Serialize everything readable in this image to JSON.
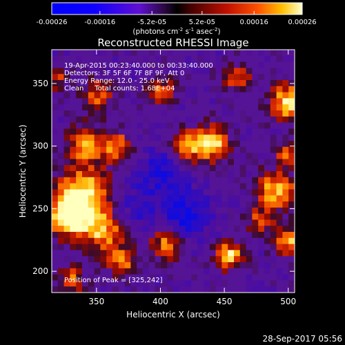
{
  "chart_data": {
    "type": "heatmap",
    "title": "Reconstructed RHESSI Image",
    "xlabel": "Heliocentric X (arcsec)",
    "ylabel": "Heliocentric Y (arcsec)",
    "xlim": [
      315,
      505
    ],
    "ylim": [
      183,
      377
    ],
    "x_ticks": [
      350,
      400,
      450,
      500
    ],
    "y_ticks": [
      200,
      250,
      300,
      350
    ],
    "colorbar": {
      "range": [
        -0.00026,
        0.00026
      ],
      "tick_labels": [
        "-0.00026",
        "-0.00016",
        "-5.2e-05",
        "5.2e-05",
        "0.00016",
        "0.00026"
      ],
      "tick_values": [
        -0.00026,
        -0.00016,
        -5.2e-05,
        5.2e-05,
        0.00016,
        0.00026
      ],
      "label": "(photons cm",
      "label_sup1": "-2",
      "label_mid": " s",
      "label_sup2": "-1",
      "label_end": " asec",
      "label_sup3": "-2",
      "label_close": ")"
    },
    "annotations": [
      "19-Apr-2015 00:23:40.000 to 00:33:40.000",
      "Detectors: 3F 5F 6F 7F 8F 9F, Att 0",
      "Energy Range: 12.0 - 25.0 keV",
      "Clean     Total counts: 1.68E+04"
    ],
    "peak_label": "Position of Peak = [325,242]",
    "blobs": [
      {
        "x": 340,
        "y": 262,
        "amp": 1.0,
        "sigma": 15
      },
      {
        "x": 328,
        "y": 243,
        "amp": 0.95,
        "sigma": 11
      },
      {
        "x": 355,
        "y": 232,
        "amp": 0.75,
        "sigma": 12
      },
      {
        "x": 440,
        "y": 302,
        "amp": 0.95,
        "sigma": 10
      },
      {
        "x": 420,
        "y": 300,
        "amp": 0.7,
        "sigma": 9
      },
      {
        "x": 342,
        "y": 302,
        "amp": 0.75,
        "sigma": 10
      },
      {
        "x": 366,
        "y": 300,
        "amp": 0.65,
        "sigma": 9
      },
      {
        "x": 350,
        "y": 340,
        "amp": 0.6,
        "sigma": 9
      },
      {
        "x": 500,
        "y": 335,
        "amp": 0.95,
        "sigma": 10
      },
      {
        "x": 490,
        "y": 265,
        "amp": 0.85,
        "sigma": 11
      },
      {
        "x": 500,
        "y": 225,
        "amp": 0.85,
        "sigma": 8
      },
      {
        "x": 454,
        "y": 212,
        "amp": 0.9,
        "sigma": 8
      },
      {
        "x": 405,
        "y": 222,
        "amp": 0.75,
        "sigma": 9
      },
      {
        "x": 370,
        "y": 208,
        "amp": 0.7,
        "sigma": 8
      },
      {
        "x": 330,
        "y": 193,
        "amp": 0.6,
        "sigma": 8
      },
      {
        "x": 500,
        "y": 295,
        "amp": 0.6,
        "sigma": 7
      },
      {
        "x": 400,
        "y": 345,
        "amp": 0.55,
        "sigma": 8
      },
      {
        "x": 460,
        "y": 355,
        "amp": 0.55,
        "sigma": 8
      },
      {
        "x": 318,
        "y": 355,
        "amp": 0.55,
        "sigma": 7
      },
      {
        "x": 478,
        "y": 240,
        "amp": 0.6,
        "sigma": 7
      },
      {
        "x": 420,
        "y": 245,
        "amp": -0.6,
        "sigma": 14
      },
      {
        "x": 400,
        "y": 280,
        "amp": -0.45,
        "sigma": 14
      },
      {
        "x": 380,
        "y": 250,
        "amp": -0.35,
        "sigma": 12
      }
    ]
  },
  "footer": {
    "timestamp": "28-Sep-2017 05:56"
  }
}
